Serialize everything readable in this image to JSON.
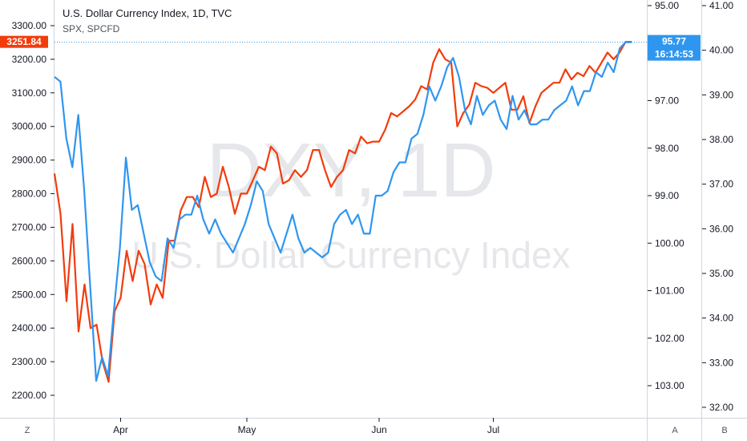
{
  "chart_data": {
    "type": "line",
    "title": "U.S. Dollar Currency Index, 1D, TVC",
    "subtitle": "SPX, SPCFD",
    "watermark": {
      "symbol": "DXY, 1D",
      "description": "U.S. Dollar Currency Index"
    },
    "x_ticks": [
      "Apr",
      "May",
      "Jun",
      "Jul"
    ],
    "series": [
      {
        "name": "SPX",
        "color": "#f23c0c",
        "axis": "left",
        "values": [
          2860,
          2740,
          2480,
          2710,
          2390,
          2530,
          2400,
          2410,
          2300,
          2240,
          2450,
          2490,
          2630,
          2540,
          2630,
          2590,
          2470,
          2530,
          2490,
          2660,
          2660,
          2750,
          2790,
          2790,
          2760,
          2850,
          2790,
          2800,
          2880,
          2820,
          2740,
          2800,
          2800,
          2840,
          2880,
          2870,
          2940,
          2920,
          2830,
          2840,
          2870,
          2850,
          2870,
          2930,
          2930,
          2870,
          2820,
          2850,
          2870,
          2930,
          2920,
          2970,
          2950,
          2955,
          2955,
          2990,
          3040,
          3030,
          3045,
          3060,
          3080,
          3120,
          3110,
          3190,
          3230,
          3200,
          3190,
          3000,
          3040,
          3065,
          3130,
          3120,
          3115,
          3100,
          3115,
          3130,
          3050,
          3050,
          3090,
          3010,
          3060,
          3100,
          3115,
          3130,
          3130,
          3170,
          3140,
          3160,
          3150,
          3180,
          3160,
          3190,
          3220,
          3200,
          3220,
          3251.84,
          3252
        ]
      },
      {
        "name": "DXY",
        "color": "#2f96f0",
        "axis": "right",
        "values": [
          96.5,
          96.6,
          97.8,
          98.4,
          97.3,
          98.9,
          100.9,
          102.9,
          102.4,
          102.8,
          101.4,
          100.1,
          98.2,
          99.3,
          99.2,
          99.8,
          100.4,
          100.7,
          100.8,
          99.9,
          100.1,
          99.5,
          99.4,
          99.4,
          99.0,
          99.5,
          99.8,
          99.5,
          99.8,
          100.0,
          100.2,
          99.9,
          99.6,
          99.2,
          98.7,
          98.9,
          99.6,
          99.9,
          100.2,
          99.8,
          99.4,
          99.9,
          100.2,
          100.1,
          100.2,
          100.3,
          100.2,
          99.6,
          99.4,
          99.3,
          99.6,
          99.4,
          99.8,
          99.8,
          99.0,
          99.0,
          98.9,
          98.5,
          98.3,
          98.3,
          97.8,
          97.7,
          97.3,
          96.7,
          97.0,
          96.7,
          96.3,
          96.1,
          96.5,
          97.2,
          97.5,
          96.9,
          97.3,
          97.1,
          97.0,
          97.4,
          97.6,
          96.9,
          97.4,
          97.2,
          97.5,
          97.5,
          97.4,
          97.4,
          97.2,
          97.1,
          97.0,
          96.7,
          97.1,
          96.8,
          96.8,
          96.4,
          96.5,
          96.2,
          96.4,
          95.9,
          95.77,
          95.77
        ]
      }
    ],
    "left_axis": {
      "ylim": [
        2200,
        3300
      ],
      "ticks": [
        2200,
        2300,
        2400,
        2500,
        2600,
        2700,
        2800,
        2900,
        3000,
        3100,
        3200,
        3300
      ],
      "tick_labels": [
        "2200.00",
        "2300.00",
        "2400.00",
        "2500.00",
        "2600.00",
        "2700.00",
        "2800.00",
        "2900.00",
        "3000.00",
        "3100.00",
        "3200.00",
        "3300.00"
      ]
    },
    "right_axis_a": {
      "inverted": true,
      "ylim": [
        94.98,
        103.34
      ],
      "ticks": [
        95,
        97,
        98,
        99,
        100,
        101,
        102,
        103
      ],
      "tick_labels": [
        "95.00",
        "97.00",
        "98.00",
        "99.00",
        "100.00",
        "101.00",
        "102.00",
        "103.00"
      ]
    },
    "right_axis_b": {
      "ylim": [
        32.0,
        41.0
      ],
      "ticks": [
        32,
        33,
        34,
        35,
        36,
        37,
        38,
        39,
        40,
        41
      ],
      "tick_labels": [
        "32.00",
        "33.00",
        "34.00",
        "35.00",
        "36.00",
        "37.00",
        "38.00",
        "39.00",
        "40.00",
        "41.00"
      ]
    },
    "last_values": {
      "spx_label": "3251.84",
      "dxy_label": "95.77",
      "countdown": "16:14:53"
    },
    "corner_labels": {
      "bottom_left": "Z",
      "bottom_right_a": "A",
      "bottom_right_b": "B"
    },
    "grid": false,
    "legend": "top-left"
  }
}
